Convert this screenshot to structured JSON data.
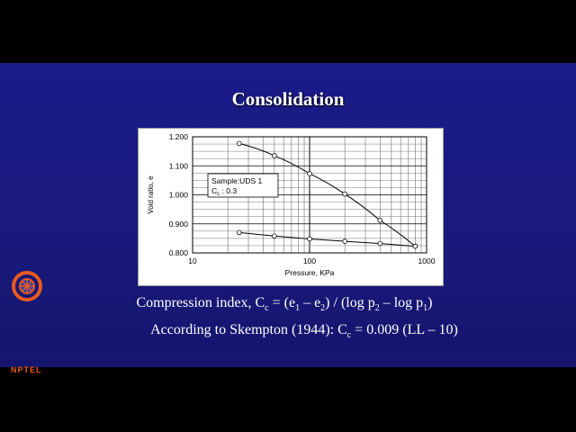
{
  "slide": {
    "title": "Consolidation",
    "formula1": {
      "prefix": "Compression index, C",
      "sub_c": "c",
      "p1": " = (e",
      "sub1": "1",
      "p2": " – e",
      "sub2": "2",
      "p3": ") / (log p",
      "sub3": "2",
      "p4": " – log p",
      "sub4": "1",
      "p5": ")"
    },
    "formula2": {
      "prefix": "According to Skempton (1944): C",
      "sub_c": "c",
      "suffix": " = 0.009 (LL – 10)"
    },
    "logo_text": "NPTEL"
  },
  "chart_data": {
    "type": "line",
    "xscale": "log",
    "xlim": [
      10,
      1000
    ],
    "ylim": [
      0.8,
      1.2
    ],
    "xticks": [
      10,
      100,
      1000
    ],
    "xtick_labels": [
      "10",
      "100",
      "1000"
    ],
    "yticks": [
      0.8,
      0.9,
      1.0,
      1.1,
      1.2
    ],
    "ytick_labels": [
      "0.800",
      "0.900",
      "1.000",
      "1.100",
      "1.200"
    ],
    "xlabel": "Pressure, KPa",
    "ylabel": "Void ratio, e",
    "grid": true,
    "annotation": {
      "line1": "Sample:UDS 1",
      "line2_prefix": "C",
      "line2_sub": "c",
      "line2_suffix": " : 0.3"
    },
    "series": [
      {
        "values": [
          [
            25,
            1.177
          ],
          [
            50,
            1.135
          ],
          [
            100,
            1.073
          ],
          [
            200,
            1.003
          ],
          [
            400,
            0.912
          ],
          [
            800,
            0.823
          ]
        ]
      },
      {
        "values": [
          [
            800,
            0.823
          ],
          [
            400,
            0.832
          ],
          [
            200,
            0.84
          ],
          [
            100,
            0.848
          ],
          [
            50,
            0.858
          ],
          [
            25,
            0.87
          ]
        ]
      }
    ]
  }
}
